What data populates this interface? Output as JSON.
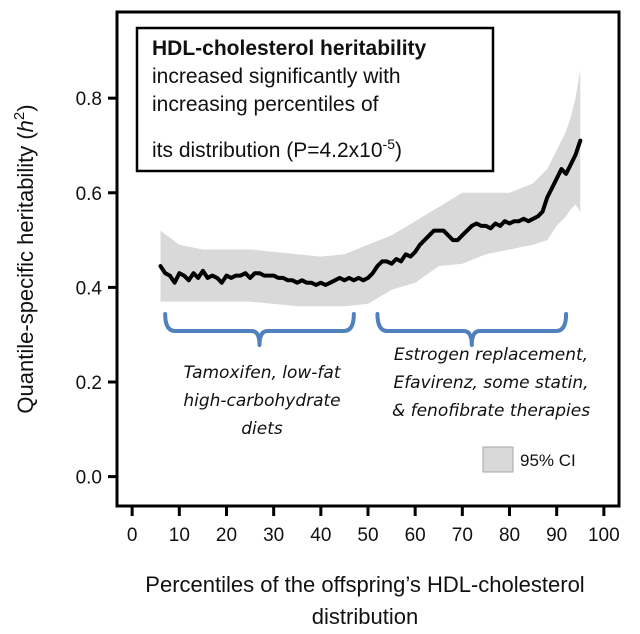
{
  "chart_data": {
    "type": "line",
    "title": "",
    "xlabel": "Percentiles of the offspring’s HDL-cholesterol distribution",
    "xlabel_lines": [
      "Percentiles of the offspring’s HDL-cholesterol",
      "distribution"
    ],
    "ylabel": "Quantile-specific heritability (h2)",
    "ylabel_main": "Quantile-specific heritability (",
    "ylabel_italic": "h",
    "ylabel_sup": "2",
    "ylabel_close": ")",
    "xlim": [
      -3,
      103
    ],
    "ylim": [
      -0.06,
      0.98
    ],
    "x_ticks": [
      0,
      10,
      20,
      30,
      40,
      50,
      60,
      70,
      80,
      90,
      100
    ],
    "y_ticks": [
      0.0,
      0.2,
      0.4,
      0.6,
      0.8
    ],
    "y_tick_labels": [
      "0.0",
      "0.2",
      "0.4",
      "0.6",
      "0.8"
    ],
    "series": [
      {
        "name": "Quantile-specific heritability",
        "color": "#000000",
        "x": [
          6,
          7,
          8,
          9,
          10,
          11,
          12,
          13,
          14,
          15,
          16,
          17,
          18,
          19,
          20,
          21,
          22,
          23,
          24,
          25,
          26,
          27,
          28,
          29,
          30,
          31,
          32,
          33,
          34,
          35,
          36,
          37,
          38,
          39,
          40,
          41,
          42,
          43,
          44,
          45,
          46,
          47,
          48,
          49,
          50,
          51,
          52,
          53,
          54,
          55,
          56,
          57,
          58,
          59,
          60,
          61,
          62,
          63,
          64,
          65,
          66,
          67,
          68,
          69,
          70,
          71,
          72,
          73,
          74,
          75,
          76,
          77,
          78,
          79,
          80,
          81,
          82,
          83,
          84,
          85,
          86,
          87,
          88,
          89,
          90,
          91,
          92,
          93,
          94,
          95
        ],
        "y": [
          0.445,
          0.43,
          0.425,
          0.41,
          0.43,
          0.425,
          0.415,
          0.43,
          0.42,
          0.435,
          0.42,
          0.425,
          0.42,
          0.41,
          0.425,
          0.42,
          0.425,
          0.425,
          0.43,
          0.42,
          0.43,
          0.43,
          0.425,
          0.425,
          0.425,
          0.42,
          0.42,
          0.415,
          0.415,
          0.41,
          0.415,
          0.41,
          0.41,
          0.405,
          0.41,
          0.405,
          0.41,
          0.415,
          0.42,
          0.415,
          0.42,
          0.415,
          0.42,
          0.415,
          0.42,
          0.43,
          0.445,
          0.455,
          0.455,
          0.45,
          0.46,
          0.455,
          0.47,
          0.465,
          0.475,
          0.49,
          0.5,
          0.51,
          0.52,
          0.52,
          0.52,
          0.51,
          0.5,
          0.5,
          0.51,
          0.52,
          0.53,
          0.535,
          0.53,
          0.53,
          0.525,
          0.535,
          0.53,
          0.54,
          0.535,
          0.54,
          0.54,
          0.545,
          0.54,
          0.545,
          0.55,
          0.56,
          0.59,
          0.61,
          0.63,
          0.65,
          0.64,
          0.66,
          0.68,
          0.71
        ]
      }
    ],
    "ci_band": {
      "name": "95% CI",
      "color": "#d9d9d9",
      "x": [
        6,
        10,
        15,
        20,
        25,
        30,
        35,
        40,
        45,
        50,
        55,
        60,
        65,
        70,
        75,
        80,
        85,
        88,
        90,
        92,
        93,
        94,
        95
      ],
      "lower": [
        0.37,
        0.37,
        0.37,
        0.37,
        0.37,
        0.365,
        0.36,
        0.36,
        0.36,
        0.365,
        0.395,
        0.41,
        0.445,
        0.45,
        0.47,
        0.48,
        0.49,
        0.5,
        0.53,
        0.55,
        0.565,
        0.575,
        0.56
      ],
      "upper": [
        0.52,
        0.49,
        0.48,
        0.48,
        0.48,
        0.475,
        0.47,
        0.465,
        0.47,
        0.49,
        0.51,
        0.54,
        0.57,
        0.6,
        0.6,
        0.6,
        0.62,
        0.65,
        0.69,
        0.73,
        0.76,
        0.8,
        0.86
      ]
    },
    "legend": {
      "label": "95% CI",
      "placement": "bottom-right"
    },
    "annotations": {
      "title_bold": "HDL-cholesterol heritability",
      "lines": [
        "increased significantly with",
        "increasing percentiles of"
      ],
      "last_line_prefix": "its distribution (P=4.2x10",
      "last_line_sup": "-5",
      "last_line_suffix": ")"
    },
    "braces": [
      {
        "x_start": 7,
        "x_end": 47,
        "color": "#4f81bd",
        "label_lines": [
          "Tamoxifen, low-fat",
          "high-carbohydrate",
          "diets"
        ]
      },
      {
        "x_start": 52,
        "x_end": 92,
        "color": "#4f81bd",
        "label_lines": [
          "Estrogen replacement,",
          "Efavirenz, some statin,",
          "& fenofibrate therapies"
        ]
      }
    ]
  }
}
